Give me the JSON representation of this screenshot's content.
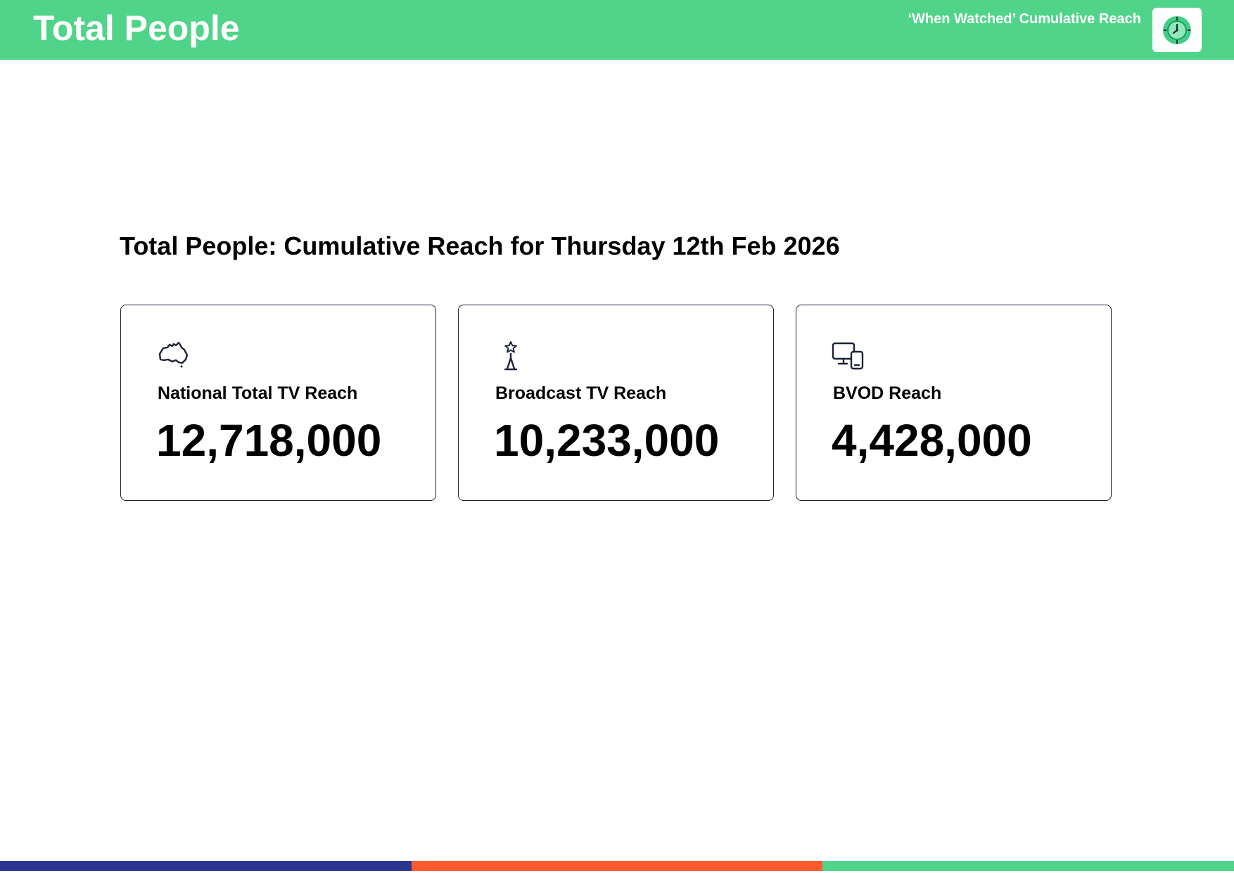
{
  "header": {
    "title": "Total People",
    "subtitle": "‘When Watched’ Cumulative Reach",
    "logo_icon": "clock-logo-icon",
    "background_color": "#50d48a"
  },
  "report_title": "Total People: Cumulative Reach for Thursday 12th Feb 2026",
  "cards": [
    {
      "icon": "australia-map-icon",
      "label": "National Total TV Reach",
      "value": "12,718,000"
    },
    {
      "icon": "broadcast-tower-icon",
      "label": "Broadcast TV Reach",
      "value": "10,233,000"
    },
    {
      "icon": "devices-icon",
      "label": "BVOD Reach",
      "value": "4,428,000"
    }
  ],
  "footer": {
    "colors": [
      "#2b3590",
      "#ff5a2e",
      "#50d48a"
    ]
  }
}
